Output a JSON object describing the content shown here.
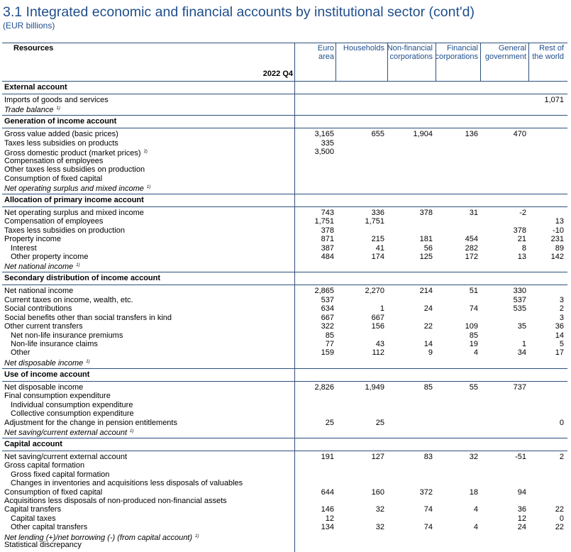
{
  "title": "3.1 Integrated economic and financial accounts by institutional sector (cont'd)",
  "subtitle": "(EUR billions)",
  "table": {
    "corner": "Resources",
    "period": "2022 Q4",
    "columns": [
      "Euro area",
      "Households",
      "Non-financial corporations",
      "Financial corporations",
      "General government",
      "Rest of the world"
    ],
    "sections": [
      {
        "title": "External account",
        "rows": [
          {
            "label": "Imports of goods and services",
            "values": [
              null,
              null,
              null,
              null,
              null,
              "1,071"
            ]
          },
          {
            "label": "Trade balance",
            "note": "1)",
            "italic": true
          }
        ]
      },
      {
        "title": "Generation of income account",
        "rows": [
          {
            "label": "Gross value added (basic prices)",
            "values": [
              "3,165",
              "655",
              "1,904",
              "136",
              "470",
              null
            ]
          },
          {
            "label": "Taxes less subsidies on products",
            "values": [
              "335",
              null,
              null,
              null,
              null,
              null
            ]
          },
          {
            "label": "Gross domestic product (market prices)",
            "note": "2)",
            "values": [
              "3,500",
              null,
              null,
              null,
              null,
              null
            ]
          },
          {
            "label": "Compensation of employees"
          },
          {
            "label": "Other taxes less subsidies on production"
          },
          {
            "label": "Consumption of fixed capital"
          },
          {
            "label": "Net operating surplus and mixed income",
            "note": "1)",
            "italic": true
          }
        ]
      },
      {
        "title": "Allocation of primary income account",
        "rows": [
          {
            "label": "Net operating surplus and mixed income",
            "values": [
              "743",
              "336",
              "378",
              "31",
              "-2",
              null
            ]
          },
          {
            "label": "Compensation of employees",
            "values": [
              "1,751",
              "1,751",
              null,
              null,
              null,
              "13"
            ]
          },
          {
            "label": "Taxes less subsidies on production",
            "values": [
              "378",
              null,
              null,
              null,
              "378",
              "-10"
            ]
          },
          {
            "label": "Property income",
            "values": [
              "871",
              "215",
              "181",
              "454",
              "21",
              "231"
            ]
          },
          {
            "label": "Interest",
            "indent": true,
            "values": [
              "387",
              "41",
              "56",
              "282",
              "8",
              "89"
            ]
          },
          {
            "label": "Other property income",
            "indent": true,
            "values": [
              "484",
              "174",
              "125",
              "172",
              "13",
              "142"
            ]
          },
          {
            "label": "Net national income",
            "note": "1)",
            "italic": true
          }
        ]
      },
      {
        "title": "Secondary distribution of income account",
        "rows": [
          {
            "label": "Net national income",
            "values": [
              "2,865",
              "2,270",
              "214",
              "51",
              "330",
              null
            ]
          },
          {
            "label": "Current taxes on income, wealth, etc.",
            "values": [
              "537",
              null,
              null,
              null,
              "537",
              "3"
            ]
          },
          {
            "label": "Social contributions",
            "values": [
              "634",
              "1",
              "24",
              "74",
              "535",
              "2"
            ]
          },
          {
            "label": "Social benefits other than social transfers in kind",
            "values": [
              "667",
              "667",
              null,
              null,
              null,
              "3"
            ]
          },
          {
            "label": "Other current transfers",
            "values": [
              "322",
              "156",
              "22",
              "109",
              "35",
              "36"
            ]
          },
          {
            "label": "Net non-life insurance premiums",
            "indent": true,
            "values": [
              "85",
              null,
              null,
              "85",
              null,
              "14"
            ]
          },
          {
            "label": "Non-life insurance claims",
            "indent": true,
            "values": [
              "77",
              "43",
              "14",
              "19",
              "1",
              "5"
            ]
          },
          {
            "label": "Other",
            "indent": true,
            "values": [
              "159",
              "112",
              "9",
              "4",
              "34",
              "17"
            ]
          },
          {
            "label": "Net disposable income",
            "note": "1)",
            "italic": true
          }
        ]
      },
      {
        "title": "Use of income account",
        "rows": [
          {
            "label": "Net disposable income",
            "values": [
              "2,826",
              "1,949",
              "85",
              "55",
              "737",
              null
            ]
          },
          {
            "label": "Final consumption expenditure"
          },
          {
            "label": "Individual consumption expenditure",
            "indent": true
          },
          {
            "label": "Collective consumption expenditure",
            "indent": true
          },
          {
            "label": "Adjustment for the change in pension entitlements",
            "values": [
              "25",
              "25",
              null,
              null,
              null,
              "0"
            ]
          },
          {
            "label": "Net saving/current external account",
            "note": "1)",
            "italic": true
          }
        ]
      },
      {
        "title": "Capital account",
        "rows": [
          {
            "label": "Net saving/current external account",
            "values": [
              "191",
              "127",
              "83",
              "32",
              "-51",
              "2"
            ]
          },
          {
            "label": "Gross capital formation"
          },
          {
            "label": "Gross fixed capital formation",
            "indent": true
          },
          {
            "label": "Changes in inventories and acquisitions less disposals of valuables",
            "indent": true
          },
          {
            "label": "Consumption of fixed capital",
            "values": [
              "644",
              "160",
              "372",
              "18",
              "94",
              null
            ]
          },
          {
            "label": "Acquisitions less disposals of non-produced non-financial assets"
          },
          {
            "label": "Capital transfers",
            "values": [
              "146",
              "32",
              "74",
              "4",
              "36",
              "22"
            ]
          },
          {
            "label": "Capital taxes",
            "indent": true,
            "values": [
              "12",
              null,
              null,
              null,
              "12",
              "0"
            ]
          },
          {
            "label": "Other capital transfers",
            "indent": true,
            "values": [
              "134",
              "32",
              "74",
              "4",
              "24",
              "22"
            ]
          },
          {
            "label": "Net lending (+)/net borrowing (-) (from capital account)",
            "note": "1)",
            "italic": true
          },
          {
            "label": "Statistical discrepancy"
          }
        ]
      }
    ]
  }
}
